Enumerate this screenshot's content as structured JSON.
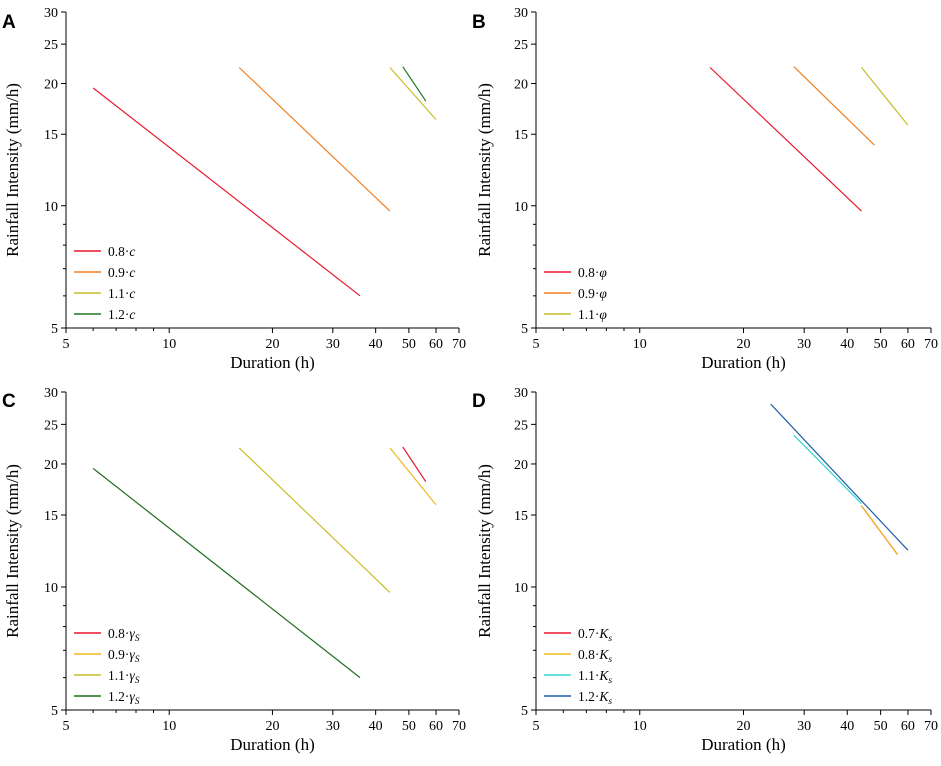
{
  "chart_data": [
    {
      "panel": "A",
      "type": "line",
      "xlabel": "Duration (h)",
      "ylabel": "Rainfall Intensity (mm/h)",
      "xscale": "log",
      "yscale": "log",
      "xlim": [
        5,
        70
      ],
      "ylim": [
        5,
        30
      ],
      "xticks": [
        5,
        10,
        20,
        30,
        40,
        50,
        60,
        70
      ],
      "yticks": [
        5,
        10,
        15,
        20,
        25,
        30
      ],
      "legend_position": "bottom-left",
      "series": [
        {
          "name": "0.8·c",
          "prefix": "0.8·",
          "var": "c",
          "sub": "",
          "color": "#e8182e",
          "x": [
            6,
            36
          ],
          "y": [
            19.5,
            6.0
          ]
        },
        {
          "name": "0.9·c",
          "prefix": "0.9·",
          "var": "c",
          "sub": "",
          "color": "#f07f22",
          "x": [
            16,
            44
          ],
          "y": [
            21.9,
            9.7
          ]
        },
        {
          "name": "1.1·c",
          "prefix": "1.1·",
          "var": "c",
          "sub": "",
          "color": "#c9bd26",
          "x": [
            44,
            60
          ],
          "y": [
            21.9,
            16.3
          ]
        },
        {
          "name": "1.2·c",
          "prefix": "1.2·",
          "var": "c",
          "sub": "",
          "color": "#1f7a1f",
          "x": [
            48,
            56
          ],
          "y": [
            22.0,
            18.1
          ]
        }
      ]
    },
    {
      "panel": "B",
      "type": "line",
      "xlabel": "Duration (h)",
      "ylabel": "Rainfall Intensity (mm/h)",
      "xscale": "log",
      "yscale": "log",
      "xlim": [
        5,
        70
      ],
      "ylim": [
        5,
        30
      ],
      "xticks": [
        5,
        10,
        20,
        30,
        40,
        50,
        60,
        70
      ],
      "yticks": [
        5,
        10,
        15,
        20,
        25,
        30
      ],
      "legend_position": "bottom-left",
      "series": [
        {
          "name": "0.8·φ",
          "prefix": "0.8·",
          "var": "φ",
          "sub": "",
          "color": "#e8182e",
          "x": [
            16,
            44
          ],
          "y": [
            21.9,
            9.7
          ]
        },
        {
          "name": "0.9·φ",
          "prefix": "0.9·",
          "var": "φ",
          "sub": "",
          "color": "#f07f22",
          "x": [
            28,
            48
          ],
          "y": [
            22.0,
            14.1
          ]
        },
        {
          "name": "1.1·φ",
          "prefix": "1.1·",
          "var": "φ",
          "sub": "",
          "color": "#c9bd26",
          "x": [
            44,
            60
          ],
          "y": [
            21.9,
            15.8
          ]
        }
      ]
    },
    {
      "panel": "C",
      "type": "line",
      "xlabel": "Duration (h)",
      "ylabel": "Rainfall Intensity (mm/h)",
      "xscale": "log",
      "yscale": "log",
      "xlim": [
        5,
        70
      ],
      "ylim": [
        5,
        30
      ],
      "xticks": [
        5,
        10,
        20,
        30,
        40,
        50,
        60,
        70
      ],
      "yticks": [
        5,
        10,
        15,
        20,
        25,
        30
      ],
      "legend_position": "bottom-left",
      "series": [
        {
          "name": "0.8·γS",
          "prefix": "0.8·",
          "var": "γ",
          "sub": "S",
          "color": "#e8182e",
          "x": [
            48,
            56
          ],
          "y": [
            22.0,
            18.1
          ]
        },
        {
          "name": "0.9·γS",
          "prefix": "0.9·",
          "var": "γ",
          "sub": "S",
          "color": "#f2b724",
          "x": [
            44,
            60
          ],
          "y": [
            21.9,
            15.9
          ]
        },
        {
          "name": "1.1·γS",
          "prefix": "1.1·",
          "var": "γ",
          "sub": "S",
          "color": "#c9bd26",
          "x": [
            16,
            44
          ],
          "y": [
            21.9,
            9.7
          ]
        },
        {
          "name": "1.2·γS",
          "prefix": "1.2·",
          "var": "γ",
          "sub": "S",
          "color": "#1f6e1f",
          "x": [
            6,
            36
          ],
          "y": [
            19.5,
            6.0
          ]
        }
      ]
    },
    {
      "panel": "D",
      "type": "line",
      "xlabel": "Duration (h)",
      "ylabel": "Rainfall Intensity (mm/h)",
      "xscale": "log",
      "yscale": "log",
      "xlim": [
        5,
        70
      ],
      "ylim": [
        5,
        30
      ],
      "xticks": [
        5,
        10,
        20,
        30,
        40,
        50,
        60,
        70
      ],
      "yticks": [
        5,
        10,
        15,
        20,
        25,
        30
      ],
      "legend_position": "bottom-left",
      "series": [
        {
          "name": "0.7·Ks",
          "prefix": "0.7·",
          "var": "K",
          "sub": "s",
          "color": "#e8182e",
          "x": [
            44,
            56
          ],
          "y": [
            15.8,
            12.0
          ]
        },
        {
          "name": "0.8·Ks",
          "prefix": "0.8·",
          "var": "K",
          "sub": "s",
          "color": "#f2b724",
          "x": [
            44,
            56
          ],
          "y": [
            15.8,
            12.0
          ]
        },
        {
          "name": "1.1·Ks",
          "prefix": "1.1·",
          "var": "K",
          "sub": "s",
          "color": "#35d4d4",
          "x": [
            28,
            44
          ],
          "y": [
            23.5,
            16.0
          ]
        },
        {
          "name": "1.2·Ks",
          "prefix": "1.2·",
          "var": "K",
          "sub": "s",
          "color": "#1f5fa8",
          "x": [
            24,
            60
          ],
          "y": [
            28.0,
            12.3
          ]
        }
      ]
    }
  ]
}
